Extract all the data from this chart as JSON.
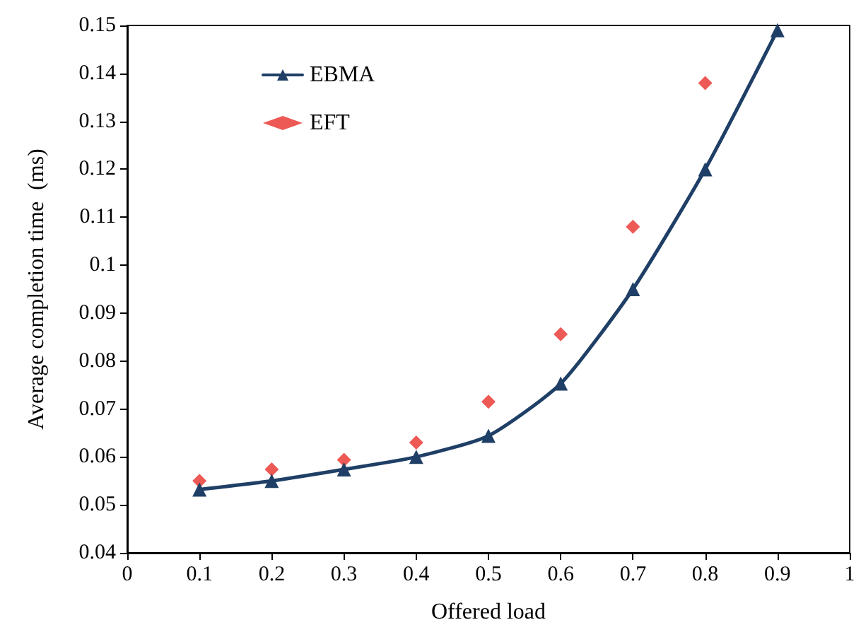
{
  "chart_data": {
    "type": "line",
    "xlabel": "Offered load",
    "ylabel": "Average completion time  (ms)",
    "xlim": [
      0,
      1
    ],
    "xticks": [
      0,
      0.1,
      0.2,
      0.3,
      0.4,
      0.5,
      0.6,
      0.7,
      0.8,
      0.9,
      1
    ],
    "ylim": [
      0.04,
      0.15
    ],
    "yticks": [
      0.04,
      0.05,
      0.06,
      0.07,
      0.08,
      0.09,
      0.1,
      0.11,
      0.12,
      0.13,
      0.14,
      0.15
    ],
    "grid": false,
    "legend": "top left",
    "series": [
      {
        "name": "EBMA",
        "marker": "triangle",
        "color": "#1f3f66",
        "x": [
          0.1,
          0.2,
          0.3,
          0.4,
          0.5,
          0.6,
          0.7,
          0.8,
          0.9
        ],
        "values": [
          0.0532,
          0.055,
          0.0574,
          0.06,
          0.0644,
          0.0753,
          0.095,
          0.12,
          0.149
        ]
      },
      {
        "name": "EFT",
        "type": "scatter",
        "marker": "diamond",
        "color": "#e8302a",
        "x": [
          0.1,
          0.2,
          0.3,
          0.4,
          0.5,
          0.6,
          0.7,
          0.8
        ],
        "values": [
          0.055,
          0.0574,
          0.0594,
          0.063,
          0.0715,
          0.0856,
          0.108,
          0.138
        ]
      }
    ]
  }
}
